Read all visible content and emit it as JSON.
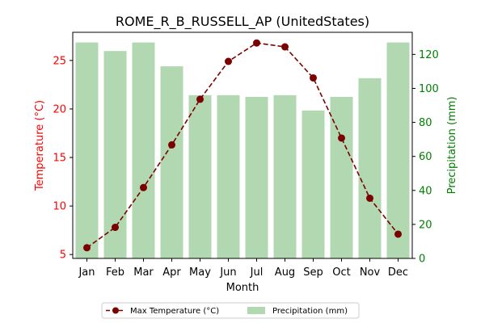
{
  "chart_data": {
    "type": "bar",
    "title": "ROME_R_B_RUSSELL_AP (UnitedStates)",
    "xlabel": "Month",
    "ylabel_left": "Temperature (°C)",
    "ylabel_right": "Precipitation (mm)",
    "categories": [
      "Jan",
      "Feb",
      "Mar",
      "Apr",
      "May",
      "Jun",
      "Jul",
      "Aug",
      "Sep",
      "Oct",
      "Nov",
      "Dec"
    ],
    "series": [
      {
        "name": "Max Temperature (°C)",
        "kind": "line",
        "axis": "left",
        "values": [
          5.7,
          7.8,
          11.9,
          16.3,
          21.0,
          24.9,
          26.8,
          26.4,
          23.2,
          17.0,
          10.8,
          7.1
        ]
      },
      {
        "name": "Precipitation (mm)",
        "kind": "bar",
        "axis": "right",
        "values": [
          127,
          122,
          127,
          113,
          96,
          96,
          95,
          96,
          87,
          95,
          106,
          127
        ]
      }
    ],
    "ylim_left": [
      4.6,
      27.9
    ],
    "ylim_right": [
      0,
      133
    ],
    "yticks_left": [
      5,
      10,
      15,
      20,
      25
    ],
    "yticks_right": [
      0,
      20,
      40,
      60,
      80,
      100,
      120
    ],
    "legend_position": "bottom-center",
    "grid": false,
    "colors": {
      "temperature_line": "#7b0000",
      "temperature_axis": "#ff0000",
      "precipitation_bar": "#b2d8b2",
      "precipitation_axis": "#008000"
    }
  }
}
